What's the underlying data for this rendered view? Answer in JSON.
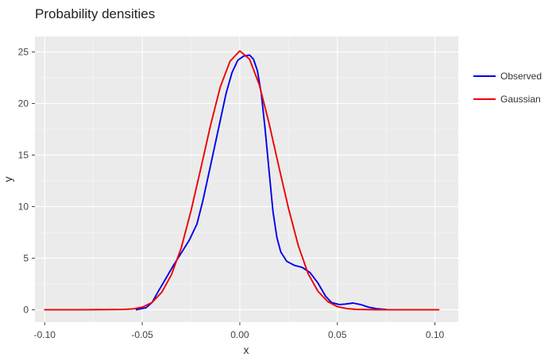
{
  "chart_data": {
    "type": "line",
    "title": "Probability densities",
    "xlabel": "x",
    "ylabel": "y",
    "xlim": [
      -0.105,
      0.112
    ],
    "ylim": [
      -1.2,
      26.5
    ],
    "xticks": [
      -0.1,
      -0.05,
      0.0,
      0.05,
      0.1
    ],
    "xtick_labels": [
      "-0.10",
      "-0.05",
      "0.00",
      "0.05",
      "0.10"
    ],
    "yticks": [
      0,
      5,
      10,
      15,
      20,
      25
    ],
    "ytick_labels": [
      "0",
      "5",
      "10",
      "15",
      "20",
      "25"
    ],
    "grid": true,
    "legend_position": "right",
    "background": "#ebebeb",
    "series": [
      {
        "name": "Observed",
        "color": "#0000ee",
        "points": [
          [
            -0.053,
            0.0
          ],
          [
            -0.048,
            0.2
          ],
          [
            -0.045,
            0.7
          ],
          [
            -0.042,
            1.7
          ],
          [
            -0.038,
            3.0
          ],
          [
            -0.034,
            4.3
          ],
          [
            -0.03,
            5.5
          ],
          [
            -0.026,
            6.7
          ],
          [
            -0.022,
            8.3
          ],
          [
            -0.019,
            10.5
          ],
          [
            -0.015,
            14.0
          ],
          [
            -0.011,
            17.5
          ],
          [
            -0.007,
            21.0
          ],
          [
            -0.004,
            23.0
          ],
          [
            -0.001,
            24.2
          ],
          [
            0.002,
            24.6
          ],
          [
            0.005,
            24.7
          ],
          [
            0.007,
            24.3
          ],
          [
            0.009,
            23.2
          ],
          [
            0.011,
            21.0
          ],
          [
            0.013,
            17.5
          ],
          [
            0.015,
            13.5
          ],
          [
            0.017,
            9.5
          ],
          [
            0.019,
            7.0
          ],
          [
            0.021,
            5.6
          ],
          [
            0.024,
            4.7
          ],
          [
            0.028,
            4.3
          ],
          [
            0.032,
            4.1
          ],
          [
            0.036,
            3.6
          ],
          [
            0.04,
            2.6
          ],
          [
            0.044,
            1.3
          ],
          [
            0.047,
            0.7
          ],
          [
            0.051,
            0.5
          ],
          [
            0.054,
            0.55
          ],
          [
            0.058,
            0.65
          ],
          [
            0.062,
            0.5
          ],
          [
            0.066,
            0.25
          ],
          [
            0.07,
            0.1
          ],
          [
            0.075,
            0.02
          ]
        ]
      },
      {
        "name": "Gaussian",
        "color": "#ee0000",
        "points": [
          [
            -0.1,
            0.0
          ],
          [
            -0.08,
            0.0
          ],
          [
            -0.06,
            0.02
          ],
          [
            -0.055,
            0.08
          ],
          [
            -0.05,
            0.25
          ],
          [
            -0.045,
            0.7
          ],
          [
            -0.04,
            1.7
          ],
          [
            -0.035,
            3.4
          ],
          [
            -0.03,
            6.0
          ],
          [
            -0.025,
            9.6
          ],
          [
            -0.02,
            13.7
          ],
          [
            -0.015,
            17.9
          ],
          [
            -0.01,
            21.6
          ],
          [
            -0.005,
            24.1
          ],
          [
            0.0,
            25.1
          ],
          [
            0.005,
            24.3
          ],
          [
            0.01,
            21.8
          ],
          [
            0.015,
            18.1
          ],
          [
            0.02,
            13.9
          ],
          [
            0.025,
            9.8
          ],
          [
            0.03,
            6.2
          ],
          [
            0.035,
            3.5
          ],
          [
            0.04,
            1.8
          ],
          [
            0.045,
            0.8
          ],
          [
            0.05,
            0.3
          ],
          [
            0.055,
            0.1
          ],
          [
            0.06,
            0.03
          ],
          [
            0.07,
            0.0
          ],
          [
            0.085,
            0.0
          ],
          [
            0.102,
            0.0
          ]
        ]
      }
    ]
  }
}
